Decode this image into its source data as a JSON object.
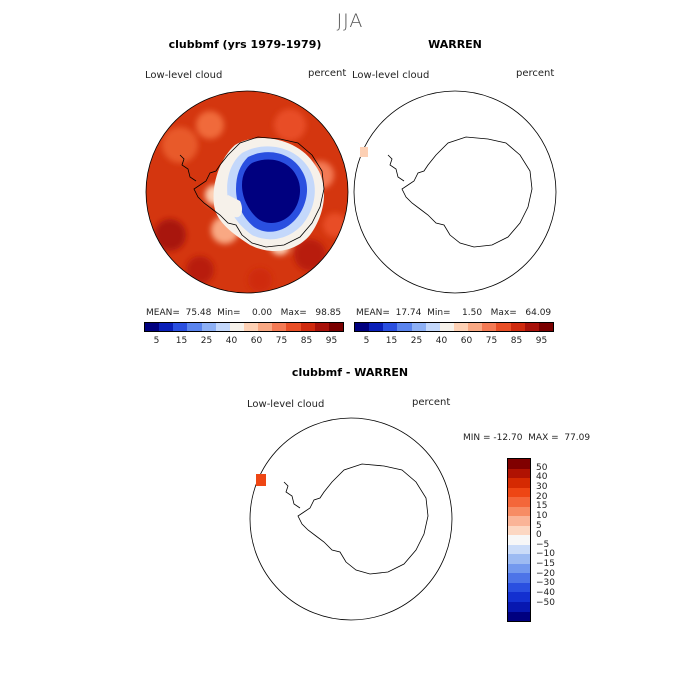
{
  "season": "JJA",
  "variable_label": "Low-level cloud",
  "units": "percent",
  "panel_model": {
    "title": "clubbmf (yrs 1979-1979)",
    "stats": {
      "mean": "75.48",
      "min": "0.00",
      "max": "98.85"
    },
    "stats_text": "MEAN=  75.48  Min=    0.00   Max=   98.85"
  },
  "panel_obs": {
    "title": "WARREN",
    "stats": {
      "mean": "17.74",
      "min": "1.50",
      "max": "64.09"
    },
    "stats_text": "MEAN=  17.74  Min=    1.50   Max=   64.09"
  },
  "panel_diff": {
    "title": "clubbmf - WARREN",
    "minmax_text": "MIN = -12.70  MAX =  77.09",
    "min": "-12.70",
    "max": "77.09"
  },
  "abs_colorbar": {
    "labels": [
      "5",
      "15",
      "25",
      "40",
      "60",
      "75",
      "85",
      "95"
    ],
    "colors": [
      "#00007f",
      "#0a1fb8",
      "#2a4fe0",
      "#5a84ee",
      "#8db0f5",
      "#c4d8fb",
      "#f6f1ea",
      "#fdd0b4",
      "#f9a883",
      "#f47a54",
      "#e84e26",
      "#cf2a0e",
      "#a8120a",
      "#7a0000"
    ]
  },
  "diff_colorbar": {
    "labels": [
      "50",
      "40",
      "30",
      "20",
      "15",
      "10",
      "5",
      "0",
      "−5",
      "−10",
      "−15",
      "−20",
      "−30",
      "−40",
      "−50"
    ],
    "colors": [
      "#800000",
      "#b01202",
      "#d52a02",
      "#ee4614",
      "#f4673a",
      "#f78c64",
      "#fab497",
      "#fcd7c2",
      "#f7f7f7",
      "#cbdcf8",
      "#9dbbf2",
      "#7399ee",
      "#4d74e8",
      "#2a4fe0",
      "#1330d0",
      "#0717b0",
      "#000080"
    ]
  }
}
